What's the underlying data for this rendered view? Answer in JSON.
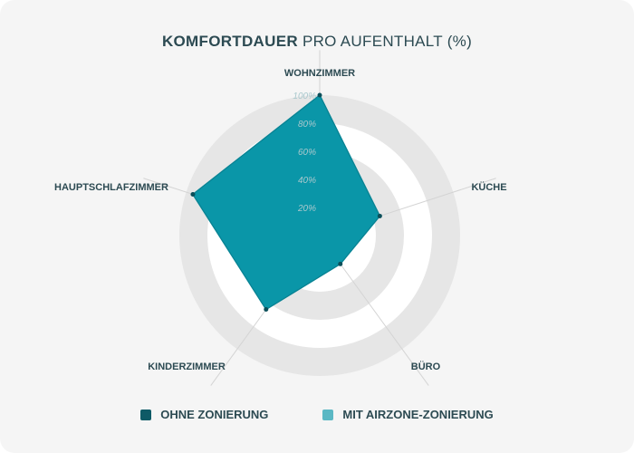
{
  "title": {
    "bold": "KOMFORTDAUER",
    "light": "PRO AUFENTHALT (%)"
  },
  "chart_data": {
    "type": "radar",
    "title": "KOMFORTDAUER PRO AUFENTHALT (%)",
    "categories": [
      "WOHNZIMMER",
      "KÜCHE",
      "BÜRO",
      "KINDERZIMMER",
      "HAUPTSCHLAFZIMMER"
    ],
    "rlim": [
      0,
      100
    ],
    "tick_labels": [
      "20%",
      "40%",
      "60%",
      "80%",
      "100%"
    ],
    "tick_values": [
      20,
      40,
      60,
      80,
      100
    ],
    "series": [
      {
        "name": "OHNE ZONIERUNG",
        "values": [
          100,
          45,
          25,
          65,
          95
        ],
        "color": "#0e6e7e"
      },
      {
        "name": "MIT AIRZONE-ZONIERUNG",
        "values": [
          100,
          45,
          25,
          65,
          95
        ],
        "color": "#0aa0b0"
      }
    ],
    "legend": "bottom"
  },
  "legend": [
    {
      "label": "OHNE ZONIERUNG",
      "color": "#0e5a66"
    },
    {
      "label": "MIT AIRZONE-ZONIERUNG",
      "color": "#5bb8c4"
    }
  ],
  "colors": {
    "fill": "#0a96a8",
    "marker": "#0b4f5a",
    "ring": "#e6e6e6",
    "axis_text": "#2c4a52"
  }
}
